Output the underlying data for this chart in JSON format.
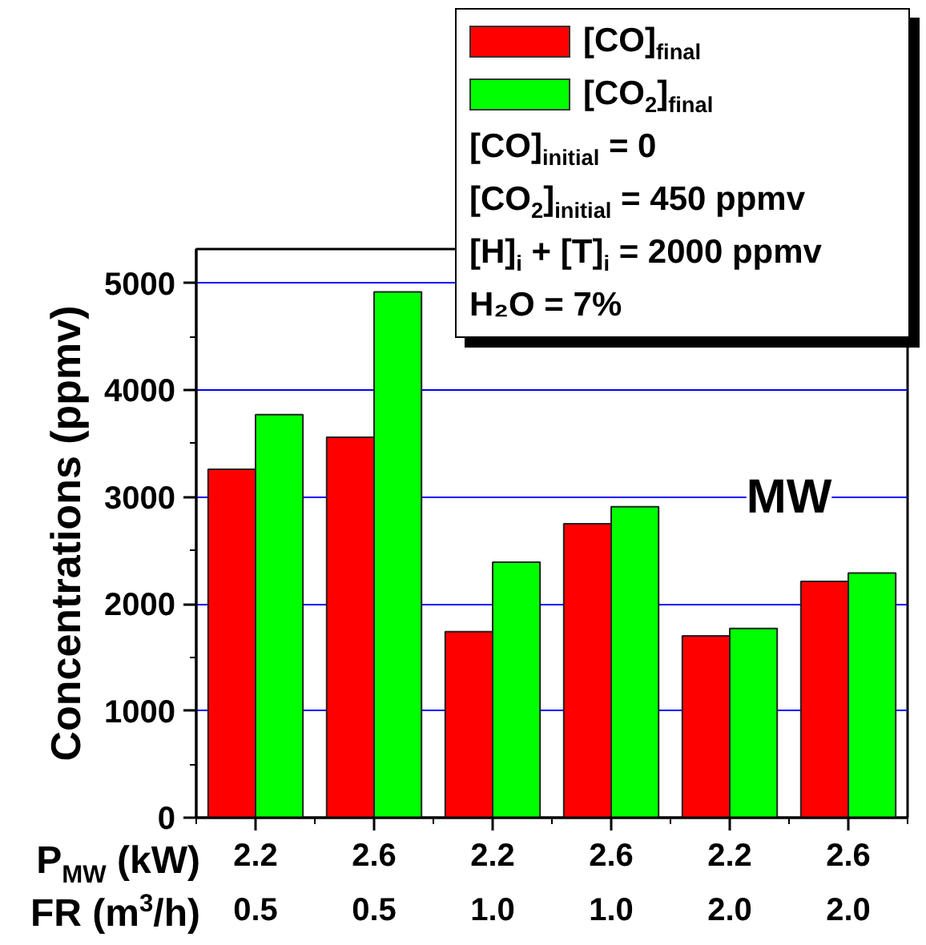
{
  "chart_data": {
    "type": "bar",
    "ylabel": "Concentrations (ppmv)",
    "xlabel": "P$_{MW}$ (kW)\nFR (m$^{3}$/h)",
    "categories": [
      "2.2\n0.5",
      "2.6\n0.5",
      "2.2\n1.0",
      "2.6\n1.0",
      "2.2\n2.0",
      "2.6\n2.0"
    ],
    "series": [
      {
        "name": "[CO]$_{final}$",
        "color": "#ff0000",
        "values": [
          3260,
          3560,
          1740,
          2750,
          1700,
          2210
        ]
      },
      {
        "name": "[CO$_{2}$]$_{final}$",
        "color": "#00ff00",
        "values": [
          3770,
          4920,
          2390,
          2910,
          1770,
          2290
        ]
      }
    ],
    "ylim": [
      0,
      5320
    ],
    "yticks": [
      0,
      1000,
      2000,
      3000,
      4000,
      5000
    ],
    "grid": "y",
    "legend": "top right",
    "annotations": [
      "MW",
      "[CO]$_{initial}$ = 0",
      "[CO$_{2}$]$_{initial}$ = 450 ppmv",
      "[H]$_{i}$ + [T]$_{i}$ = 2000 ppmv",
      "H₂O = 7%"
    ]
  }
}
